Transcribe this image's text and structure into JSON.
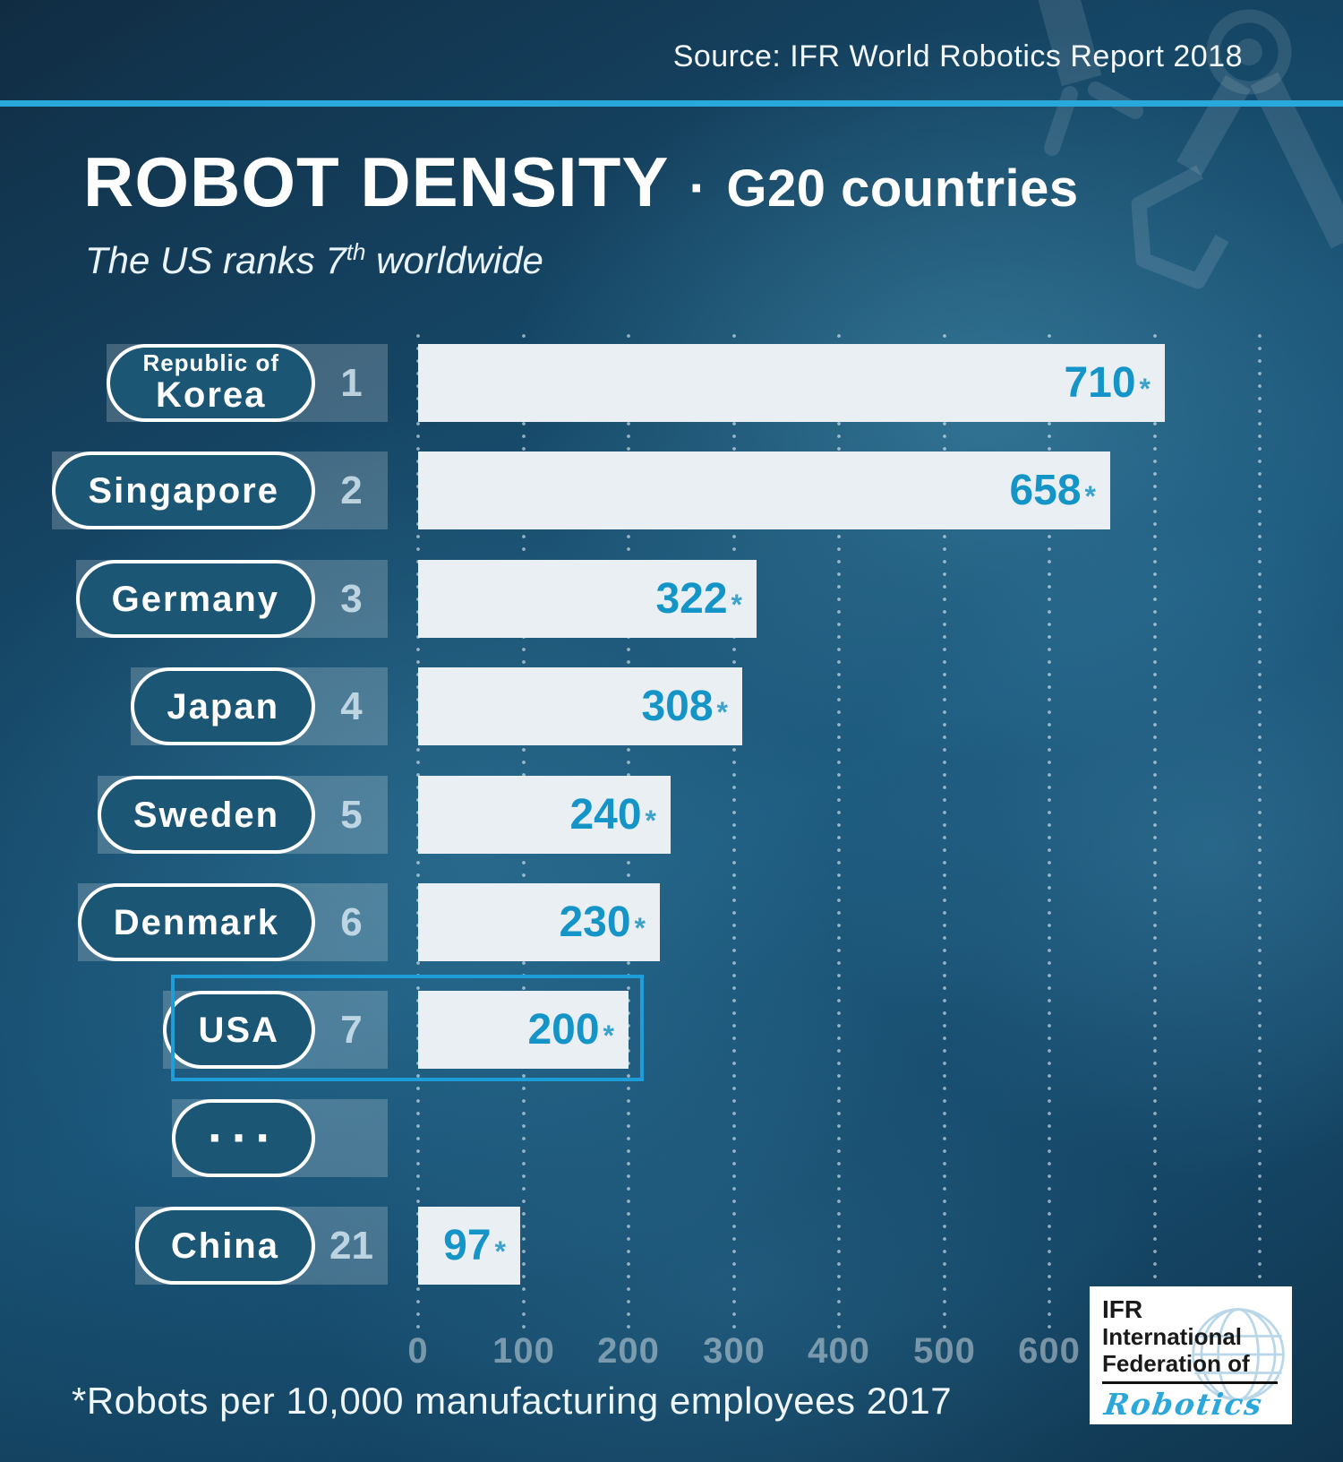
{
  "source": "Source: IFR World Robotics Report 2018",
  "title": {
    "main": "ROBOT DENSITY",
    "separator": "·",
    "suffix": "G20 countries"
  },
  "subtitle": {
    "pre": "The US ranks 7",
    "sup": "th",
    "post": " worldwide"
  },
  "footnote": "*Robots per 10,000 manufacturing employees 2017",
  "logo": {
    "line1": "IFR",
    "line2": "International",
    "line3": "Federation of",
    "script": "Robotics"
  },
  "colors": {
    "accent_cyan": "#29a9db",
    "value_text": "#1494c7",
    "bar_fill": "#e9eff3",
    "highlight_border": "#1e9ed8",
    "pill_border": "#ffffff"
  },
  "chart_data": {
    "type": "bar",
    "orientation": "horizontal",
    "title": "ROBOT DENSITY · G20 countries",
    "subtitle": "The US ranks 7th worldwide",
    "xlabel": "Robots per 10,000 manufacturing employees 2017",
    "x_ticks": [
      "0",
      "100",
      "200",
      "300",
      "400",
      "500",
      "600"
    ],
    "x_tick_values": [
      0,
      100,
      200,
      300,
      400,
      500,
      600
    ],
    "x_max_gridline": 800,
    "grid": true,
    "rows": [
      {
        "country": "Korea",
        "country_prefix": "Republic of",
        "rank": "1",
        "value": 710,
        "suffix": "*"
      },
      {
        "country": "Singapore",
        "rank": "2",
        "value": 658,
        "suffix": "*"
      },
      {
        "country": "Germany",
        "rank": "3",
        "value": 322,
        "suffix": "*"
      },
      {
        "country": "Japan",
        "rank": "4",
        "value": 308,
        "suffix": "*"
      },
      {
        "country": "Sweden",
        "rank": "5",
        "value": 240,
        "suffix": "*"
      },
      {
        "country": "Denmark",
        "rank": "6",
        "value": 230,
        "suffix": "*"
      },
      {
        "country": "USA",
        "rank": "7",
        "value": 200,
        "suffix": "*",
        "highlighted": true
      },
      {
        "country": "···",
        "rank": "",
        "value": null,
        "ellipsis": true
      },
      {
        "country": "China",
        "rank": "21",
        "value": 97,
        "suffix": "*"
      }
    ],
    "highlight": {
      "country": "USA",
      "rank": 7
    }
  }
}
